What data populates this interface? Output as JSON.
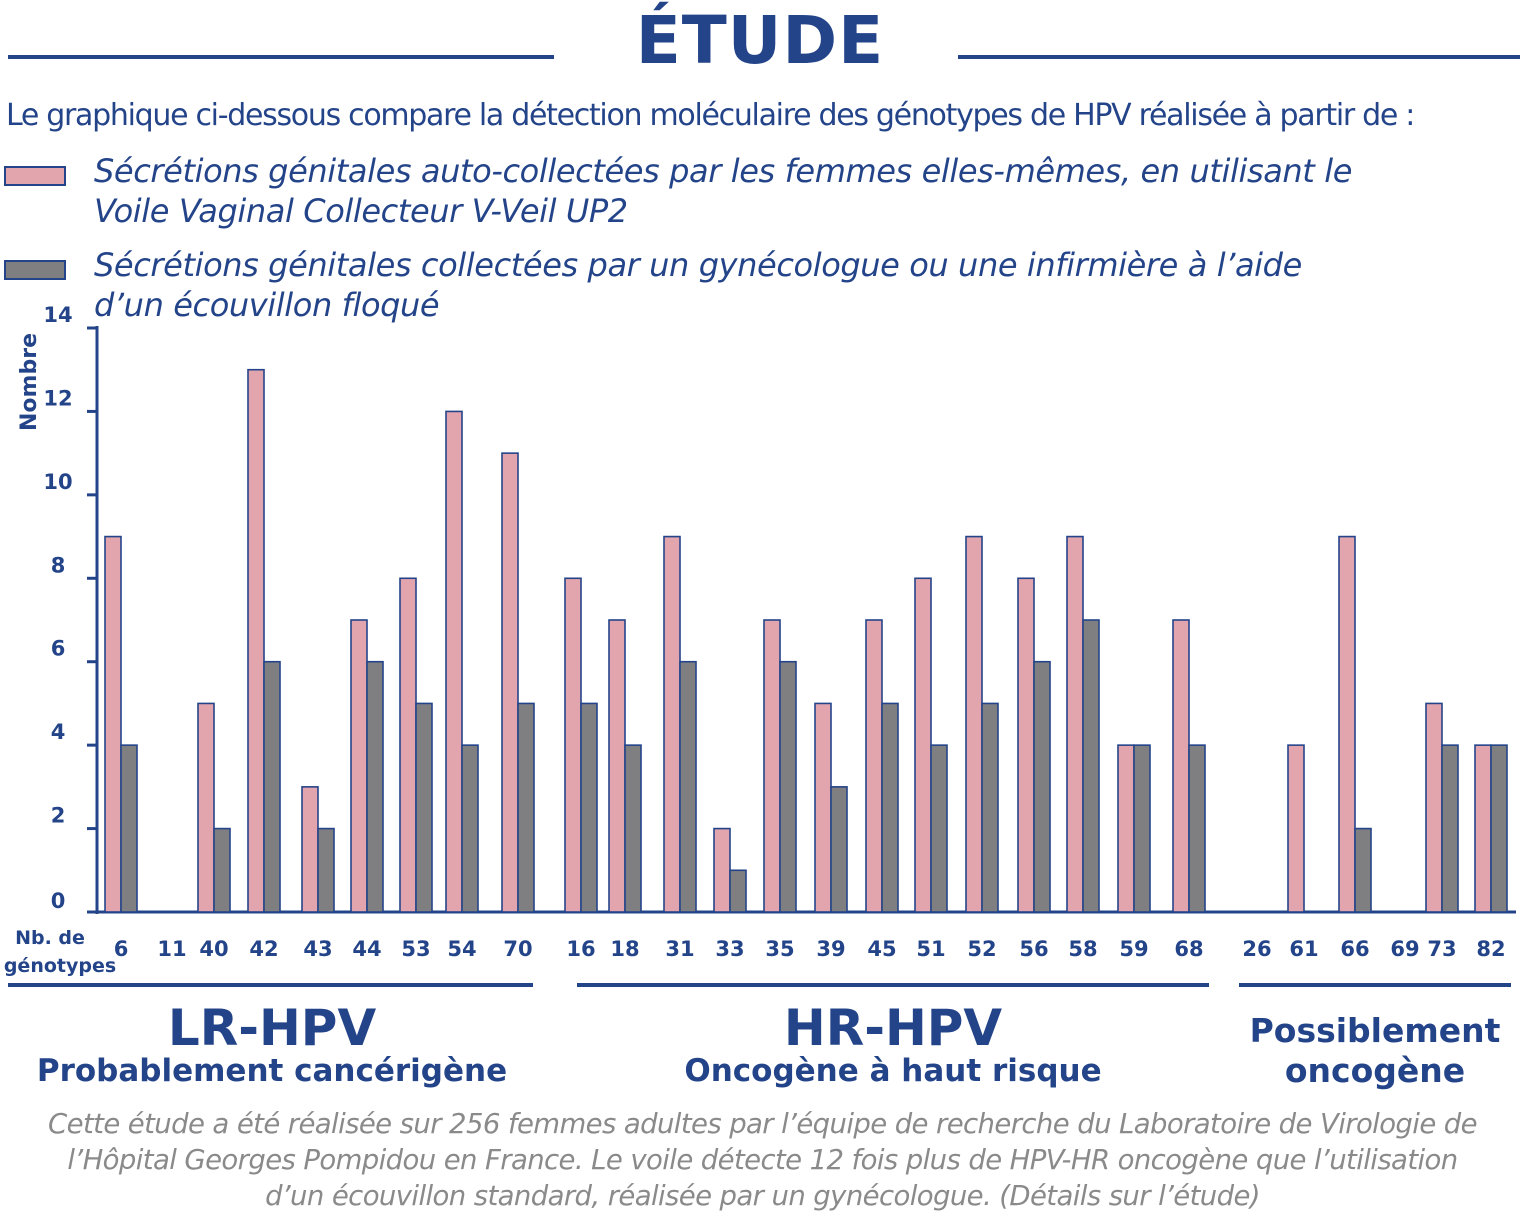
{
  "title": "ÉTUDE",
  "intro": "Le graphique ci-dessous compare la détection moléculaire des génotypes de HPV réalisée à partir de :",
  "colors": {
    "self_collected": "#e2a5ae",
    "clinician_collected": "#7f7f82",
    "accent": "#24448a",
    "footnote": "#8a8a8a"
  },
  "legend": [
    {
      "line1": "Sécrétions génitales auto-collectées par les femmes elles-mêmes, en utilisant le",
      "line2": "Voile Vaginal Collecteur V-Veil UP2"
    },
    {
      "line1": "Sécrétions génitales collectées par un gynécologue ou une infirmière à l’aide",
      "line2": "d’un écouvillon floqué"
    }
  ],
  "chart_data": {
    "type": "bar",
    "ylabel": "Nombre",
    "xlabel_line1": "Nb. de",
    "xlabel_line2": "génotypes",
    "ylim": [
      0,
      14
    ],
    "yticks": [
      "0",
      "2",
      "4",
      "6",
      "8",
      "10",
      "12",
      "14"
    ],
    "categories": [
      "6",
      "11",
      "40",
      "42",
      "43",
      "44",
      "53",
      "54",
      "70",
      "16",
      "18",
      "31",
      "33",
      "35",
      "39",
      "45",
      "51",
      "52",
      "56",
      "58",
      "59",
      "68",
      "26",
      "61",
      "66",
      "69",
      "73",
      "82"
    ],
    "series": [
      {
        "values": [
          9,
          0,
          5,
          13,
          3,
          7,
          8,
          12,
          11,
          8,
          7,
          9,
          2,
          7,
          5,
          7,
          8,
          9,
          8,
          9,
          4,
          7,
          0,
          4,
          9,
          0,
          5,
          4
        ]
      },
      {
        "values": [
          4,
          0,
          2,
          6,
          2,
          6,
          5,
          4,
          5,
          5,
          4,
          6,
          1,
          6,
          3,
          5,
          4,
          5,
          6,
          7,
          4,
          4,
          0,
          0,
          2,
          0,
          4,
          4
        ]
      }
    ],
    "groups": [
      {
        "name": "LR-HPV",
        "subtitle": "Probablement cancérigène",
        "start": 0,
        "end": 8
      },
      {
        "name": "HR-HPV",
        "subtitle": "Oncogène à haut risque",
        "start": 9,
        "end": 21
      },
      {
        "name": "",
        "subtitle": "Possiblement oncogène",
        "start": 22,
        "end": 27
      }
    ]
  },
  "footnote": [
    "Cette étude a été réalisée sur 256 femmes adultes par l’équipe de recherche du Laboratoire de Virologie de",
    "l’Hôpital Georges Pompidou en France. Le voile détecte 12 fois plus de HPV-HR oncogène que l’utilisation",
    "d’un écouvillon standard, réalisée par un gynécologue. (Détails sur l’étude)"
  ]
}
